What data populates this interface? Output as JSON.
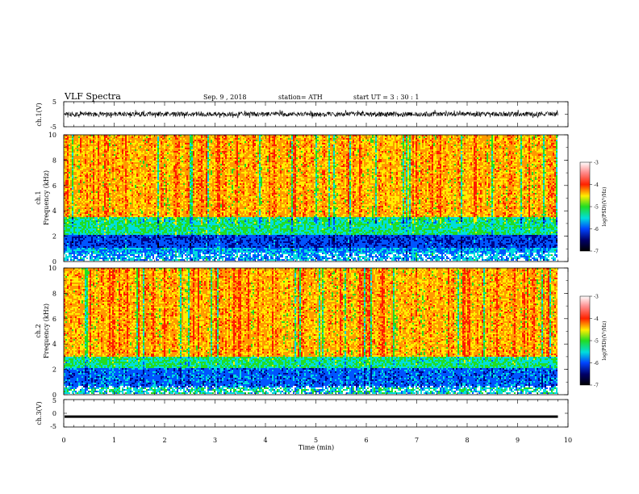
{
  "header": {
    "title": "VLF  Spectra",
    "date": "Sep. 9  , 2018",
    "station": "station= ATH",
    "start": "start  UT  =    3  : 30 : 1"
  },
  "chart_data": [
    {
      "type": "line",
      "panel": "ch1-waveform",
      "ylabel": "ch.1(V)",
      "ylim": [
        -5,
        5
      ],
      "y_ticks": [
        "5",
        "-5"
      ],
      "x_range": [
        0,
        10
      ],
      "series": [
        {
          "values_note": "",
          "envelope_v": [
            -1.3,
            1.4
          ],
          "data_end_min": 9.8,
          "color": "#000000"
        }
      ]
    },
    {
      "type": "heatmap",
      "panel": "ch1-spectrogram",
      "ylabel_top": "ch.1",
      "ylabel": "Frequency  (kHz)",
      "ylim": [
        0,
        10
      ],
      "y_ticks": [
        "0",
        "2",
        "4",
        "6",
        "8",
        "10"
      ],
      "x_range": [
        0,
        9.8
      ],
      "colorbar": {
        "label": "log(PSD)(V²/Hz)",
        "ticks": [
          "-3",
          "-4",
          "-5",
          "-6",
          "-7"
        ],
        "range": [
          -7,
          -3
        ]
      },
      "dominant_levels": [
        {
          "band_khz": [
            3.5,
            10
          ],
          "log_psd": -4.0
        },
        {
          "band_khz": [
            2.0,
            3.5
          ],
          "log_psd": -5.0
        },
        {
          "band_khz": [
            1.0,
            2.0
          ],
          "log_psd": -6.0
        },
        {
          "band_khz": [
            0.0,
            1.0
          ],
          "log_psd": -5.5
        }
      ]
    },
    {
      "type": "heatmap",
      "panel": "ch2-spectrogram",
      "ylabel_top": "ch.2",
      "ylabel": "Frequency  (kHz)",
      "ylim": [
        0,
        10
      ],
      "y_ticks": [
        "0",
        "2",
        "4",
        "6",
        "8",
        "10"
      ],
      "x_range": [
        0,
        9.8
      ],
      "colorbar": {
        "label": "log(PSD)(V²/Hz)",
        "ticks": [
          "-3",
          "-4",
          "-5",
          "-6",
          "-7"
        ],
        "range": [
          -7,
          -3
        ]
      },
      "dominant_levels": [
        {
          "band_khz": [
            3.0,
            10
          ],
          "log_psd": -4.0
        },
        {
          "band_khz": [
            2.0,
            3.0
          ],
          "log_psd": -5.0
        },
        {
          "band_khz": [
            0.5,
            2.0
          ],
          "log_psd": -5.8
        },
        {
          "band_khz": [
            0.0,
            0.5
          ],
          "log_psd": -5.2
        }
      ]
    },
    {
      "type": "line",
      "panel": "ch3-waveform",
      "ylabel": "ch.3(V)",
      "ylim": [
        -5,
        5
      ],
      "y_ticks": [
        "5",
        "0",
        "-5"
      ],
      "x_range": [
        0,
        10
      ],
      "series": [
        {
          "values_note": "",
          "constant_v": -1.2,
          "data_end_min": 9.8,
          "color": "#000000"
        }
      ]
    }
  ],
  "xaxis": {
    "label": "Time  (min)",
    "ticks": [
      "0",
      "1",
      "2",
      "3",
      "4",
      "5",
      "6",
      "7",
      "8",
      "9",
      "10"
    ]
  },
  "colors": {
    "red": "#ff1a00",
    "orange": "#ff9900",
    "yellow": "#ffee00",
    "green": "#22dd22",
    "cyan": "#00dddd",
    "blue": "#0055ff",
    "navy": "#000088",
    "black": "#000000"
  }
}
